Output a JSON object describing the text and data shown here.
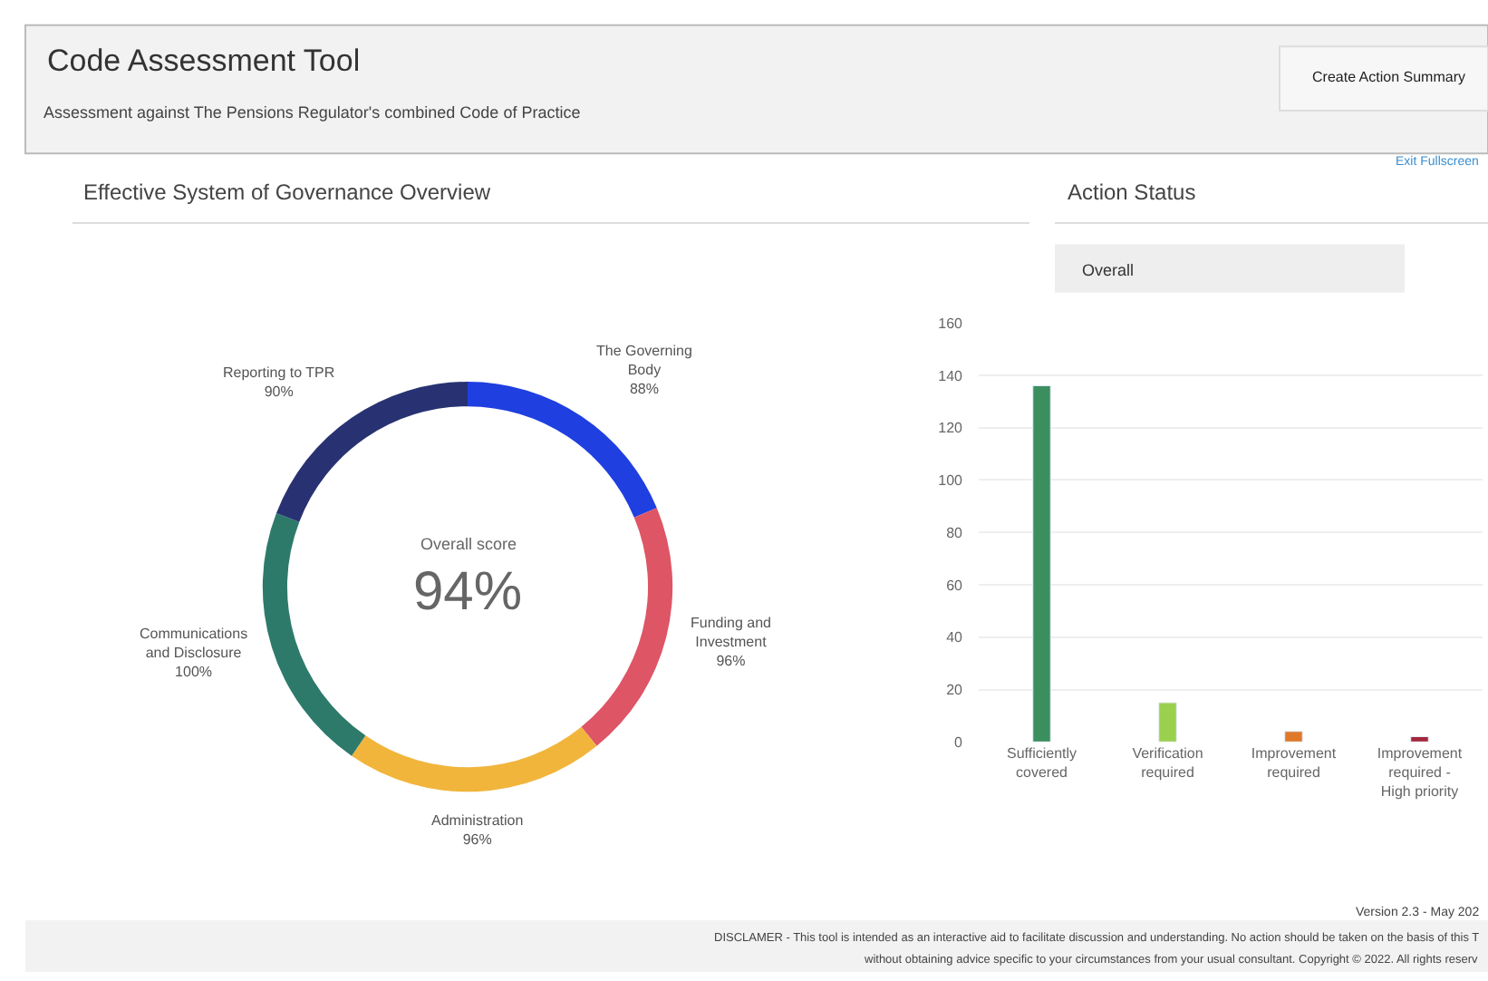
{
  "chart_data": [
    {
      "type": "other",
      "title": "Code Assessment Tool",
      "subtitle": "Assessment against The Pensions Regulator's combined Code of Practice",
      "annotations": [
        "Create Action Summary",
        "Exit Fullscreen",
        "Version 2.3 - May 202",
        "DISCLAMER - This tool is intended as an interactive aid to facilitate discussion and understanding. No action should be taken on the basis of this T",
        "without obtaining advice specific to your circumstances from your usual consultant. Copyright © 2022. All rights reserv"
      ]
    },
    {
      "type": "donut",
      "title": "Effective System of Governance Overview",
      "categories": [
        "The Governing Body",
        "Funding and Investment",
        "Administration",
        "Communications and Disclosure",
        "Reporting to TPR"
      ],
      "values": [
        88,
        96,
        96,
        100,
        90
      ],
      "value_labels": [
        "88%",
        "96%",
        "96%",
        "100%",
        "90%"
      ],
      "colors": [
        "#1f3fe0",
        "#de5566",
        "#f1b53c",
        "#2d7a6b",
        "#283272"
      ],
      "annotations": [
        "Overall score",
        "94%"
      ]
    },
    {
      "type": "bar",
      "title": "Action Status",
      "categories": [
        "Sufficiently covered",
        "Verification required",
        "Improvement required",
        "Improvement required - High priority"
      ],
      "values": [
        136,
        15,
        4,
        2
      ],
      "colors": [
        "#3b8f5f",
        "#9bcf4e",
        "#e0792a",
        "#a3283a"
      ],
      "ylim": [
        0,
        160
      ],
      "yticks": [
        0,
        20,
        40,
        60,
        80,
        100,
        120,
        140,
        160
      ],
      "grid": "y",
      "annotations": [
        "Overall"
      ]
    }
  ]
}
